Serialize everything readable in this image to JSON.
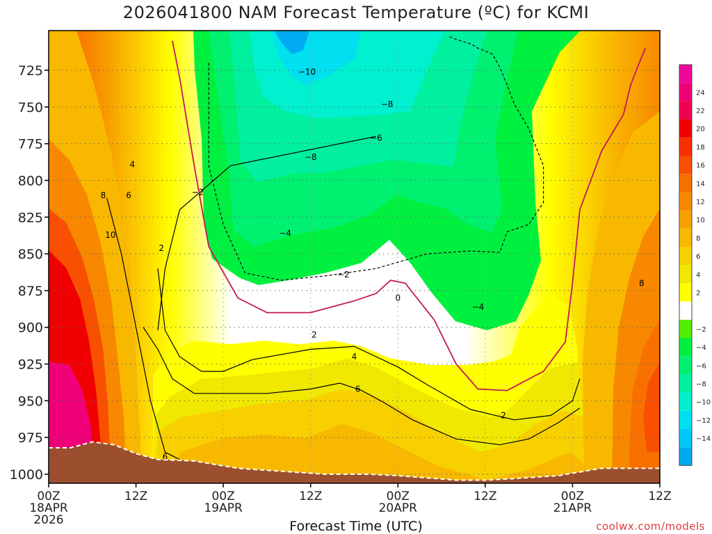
{
  "title": "2026041800 NAM Forecast Temperature (ºC) for KCMI",
  "credit": "coolwx.com/models",
  "chart_data": {
    "type": "contour",
    "title": "2026041800 NAM Forecast Temperature (ºC) for KCMI",
    "xlabel": "Forecast Time (UTC)",
    "ylabel": "",
    "xlim": [
      0,
      84
    ],
    "ylim": [
      1003,
      700
    ],
    "x_ticks": [
      {
        "hour": 0,
        "label": "00Z",
        "sub1": "18APR",
        "sub2": "2026"
      },
      {
        "hour": 12,
        "label": "12Z",
        "sub1": "",
        "sub2": ""
      },
      {
        "hour": 24,
        "label": "00Z",
        "sub1": "19APR",
        "sub2": ""
      },
      {
        "hour": 36,
        "label": "12Z",
        "sub1": "",
        "sub2": ""
      },
      {
        "hour": 48,
        "label": "00Z",
        "sub1": "20APR",
        "sub2": ""
      },
      {
        "hour": 60,
        "label": "12Z",
        "sub1": "",
        "sub2": ""
      },
      {
        "hour": 72,
        "label": "00Z",
        "sub1": "21APR",
        "sub2": ""
      },
      {
        "hour": 84,
        "label": "12Z",
        "sub1": "",
        "sub2": ""
      }
    ],
    "y_ticks": [
      {
        "value": 725,
        "label": "725"
      },
      {
        "value": 750,
        "label": "750"
      },
      {
        "value": 775,
        "label": "775"
      },
      {
        "value": 800,
        "label": "800"
      },
      {
        "value": 825,
        "label": "825"
      },
      {
        "value": 850,
        "label": "850"
      },
      {
        "value": 875,
        "label": "875"
      },
      {
        "value": 900,
        "label": "900"
      },
      {
        "value": 925,
        "label": "925"
      },
      {
        "value": 950,
        "label": "950"
      },
      {
        "value": 975,
        "label": "975"
      },
      {
        "value": 1000,
        "label": "1000"
      }
    ],
    "colorbar": [
      {
        "label": "",
        "color": "#00aaf0"
      },
      {
        "label": "-14",
        "color": "#00c8f8"
      },
      {
        "label": "-12",
        "color": "#00e0f0"
      },
      {
        "label": "-10",
        "color": "#00f0d0"
      },
      {
        "label": "-8",
        "color": "#00f0a0"
      },
      {
        "label": "-6",
        "color": "#00f070"
      },
      {
        "label": "-4",
        "color": "#00f040"
      },
      {
        "label": "-2",
        "color": "#50f000"
      },
      {
        "label": "",
        "color": "#ffffff"
      },
      {
        "label": "2",
        "color": "#ffff00"
      },
      {
        "label": "4",
        "color": "#f0e800"
      },
      {
        "label": "6",
        "color": "#f8d000"
      },
      {
        "label": "8",
        "color": "#f8b800"
      },
      {
        "label": "10",
        "color": "#f8a000"
      },
      {
        "label": "12",
        "color": "#f88800"
      },
      {
        "label": "14",
        "color": "#f87000"
      },
      {
        "label": "16",
        "color": "#f85000"
      },
      {
        "label": "18",
        "color": "#f83000"
      },
      {
        "label": "20",
        "color": "#f00000"
      },
      {
        "label": "22",
        "color": "#f00050"
      },
      {
        "label": "24",
        "color": "#f00078"
      },
      {
        "label": "",
        "color": "#f0089a"
      }
    ],
    "contour_labels": [
      {
        "text": "4",
        "hour": 11.5,
        "p": 791
      },
      {
        "text": "8",
        "hour": 7.5,
        "p": 812
      },
      {
        "text": "6",
        "hour": 11,
        "p": 812
      },
      {
        "text": "10",
        "hour": 8.5,
        "p": 839
      },
      {
        "text": "2",
        "hour": 15.5,
        "p": 848
      },
      {
        "text": "-2",
        "hour": 20.5,
        "p": 810
      },
      {
        "text": "-10",
        "hour": 35.5,
        "p": 728
      },
      {
        "text": "-8",
        "hour": 46.5,
        "p": 750
      },
      {
        "text": "-8",
        "hour": 36,
        "p": 786
      },
      {
        "text": "-6",
        "hour": 45,
        "p": 773
      },
      {
        "text": "-4",
        "hour": 32.5,
        "p": 838
      },
      {
        "text": "-2",
        "hour": 40.5,
        "p": 866
      },
      {
        "text": "0",
        "hour": 48,
        "p": 882
      },
      {
        "text": "-4",
        "hour": 59,
        "p": 888
      },
      {
        "text": "2",
        "hour": 36.5,
        "p": 907
      },
      {
        "text": "4",
        "hour": 42,
        "p": 922
      },
      {
        "text": "6",
        "hour": 42.5,
        "p": 944
      },
      {
        "text": "2",
        "hour": 62.5,
        "p": 962
      },
      {
        "text": "8",
        "hour": 81.5,
        "p": 872
      },
      {
        "text": "6",
        "hour": 16,
        "p": 990
      }
    ],
    "surface_pressure": [
      [
        0,
        982
      ],
      [
        3,
        982
      ],
      [
        6,
        978
      ],
      [
        9,
        980
      ],
      [
        12,
        986
      ],
      [
        15,
        990
      ],
      [
        20,
        991
      ],
      [
        26,
        996
      ],
      [
        32,
        998
      ],
      [
        38,
        1000
      ],
      [
        41,
        1000
      ],
      [
        44,
        1000
      ],
      [
        48,
        1001
      ],
      [
        56,
        1004
      ],
      [
        60,
        1004
      ],
      [
        64,
        1003
      ],
      [
        70,
        1001
      ],
      [
        76,
        996
      ],
      [
        84,
        996
      ]
    ],
    "isotherms": [
      {
        "value": 2,
        "color": "#000000",
        "dash": false,
        "x": [
          45,
          25,
          18,
          16,
          15
        ],
        "y": [
          770,
          790,
          820,
          860,
          902
        ]
      },
      {
        "value": -2,
        "color": "#000000",
        "dash": true,
        "x": [
          22,
          22,
          22,
          24,
          27,
          32,
          38,
          45,
          52,
          58,
          62,
          63,
          66,
          68,
          68,
          66,
          64,
          63,
          62,
          61,
          60,
          59,
          58,
          56,
          55
        ],
        "y": [
          720,
          750,
          790,
          830,
          863,
          868,
          865,
          860,
          850,
          848,
          849,
          835,
          830,
          815,
          790,
          765,
          748,
          735,
          723,
          714,
          712,
          710,
          707,
          704,
          702
        ]
      },
      {
        "value": 0,
        "color": "#c2185b",
        "dash": false,
        "x": [
          17,
          18,
          19,
          20,
          22,
          26,
          30,
          36,
          42,
          45,
          47,
          49,
          53,
          56,
          59,
          63,
          68,
          71,
          72,
          73,
          76,
          79,
          80,
          81,
          82
        ],
        "y": [
          705,
          730,
          760,
          790,
          845,
          880,
          890,
          890,
          882,
          877,
          868,
          870,
          895,
          925,
          942,
          943,
          930,
          910,
          870,
          820,
          780,
          755,
          735,
          722,
          710
        ]
      },
      {
        "value": 4,
        "color": "#000000",
        "dash": false,
        "x": [
          15,
          16,
          18,
          21,
          24,
          28,
          36,
          42,
          45,
          48,
          52,
          58,
          64,
          69,
          72,
          73
        ],
        "y": [
          860,
          902,
          920,
          930,
          930,
          922,
          915,
          913,
          920,
          927,
          939,
          956,
          963,
          960,
          950,
          935
        ]
      },
      {
        "value": 6,
        "color": "#000000",
        "dash": false,
        "x": [
          13,
          15,
          17,
          20,
          24,
          30,
          36,
          40,
          43,
          46,
          50,
          56,
          62,
          66,
          70,
          73
        ],
        "y": [
          900,
          915,
          935,
          945,
          945,
          945,
          942,
          938,
          943,
          951,
          963,
          976,
          980,
          976,
          965,
          955
        ]
      },
      {
        "value": 8,
        "color": "#000000",
        "dash": false,
        "x": [
          8,
          10,
          12,
          14,
          16,
          18
        ],
        "y": [
          812,
          850,
          900,
          950,
          985,
          990
        ]
      }
    ]
  }
}
